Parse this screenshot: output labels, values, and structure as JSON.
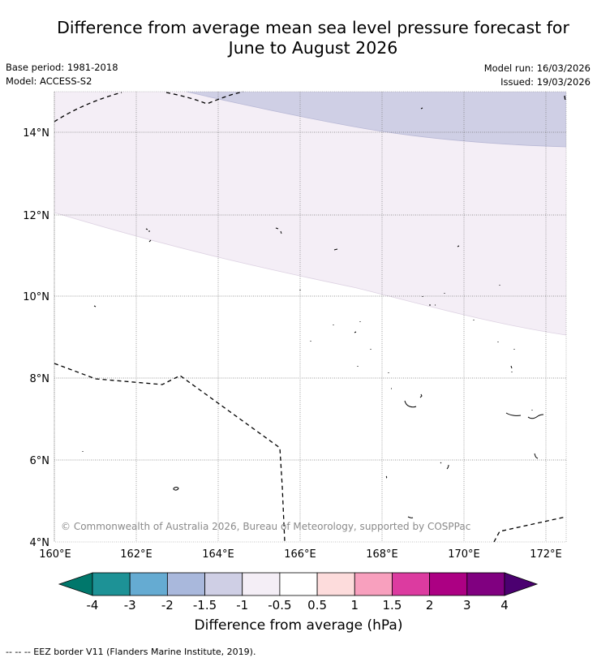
{
  "title": {
    "line1": "Difference from average mean sea level pressure forecast for",
    "line2": "June to August 2026"
  },
  "meta": {
    "base_period": "Base period: 1981-2018",
    "model": "Model: ACCESS-S2",
    "model_run": "Model run: 16/03/2026",
    "issued": "Issued: 19/03/2026"
  },
  "map": {
    "lon_range": [
      160,
      172.5
    ],
    "lat_range": [
      4,
      15
    ],
    "x_ticks": [
      "160°E",
      "162°E",
      "164°E",
      "166°E",
      "168°E",
      "170°E",
      "172°E"
    ],
    "y_ticks": [
      "4°N",
      "6°N",
      "8°N",
      "10°N",
      "12°N",
      "14°N"
    ],
    "copyright": "© Commonwealth of Australia 2026, Bureau of Meteorology, supported by COSPPac",
    "regions": [
      {
        "category": "-1.5 to -1",
        "color": "#cfcfe5",
        "description": "north-east corner"
      },
      {
        "category": "-1 to -0.5",
        "color": "#f4eef6",
        "description": "northern band"
      },
      {
        "category": "-0.5 to 0.5",
        "color": "#ffffff",
        "description": "remainder"
      }
    ]
  },
  "colorbar": {
    "ticks": [
      "-4",
      "-3",
      "-2",
      "-1.5",
      "-1",
      "-0.5",
      "0.5",
      "1",
      "1.5",
      "2",
      "3",
      "4"
    ],
    "colors": [
      "#00776b",
      "#1d9296",
      "#65abd2",
      "#a9b8dc",
      "#cfcfe5",
      "#f4eef6",
      "#ffffff",
      "#fddcdc",
      "#f8a0be",
      "#dc3ba0",
      "#ac0083",
      "#800080",
      "#4b0070"
    ],
    "label": "Difference from average (hPa)"
  },
  "legend": {
    "eez_label": "--  --  -- EEZ border V11 (Flanders Marine Institute, 2019)."
  }
}
